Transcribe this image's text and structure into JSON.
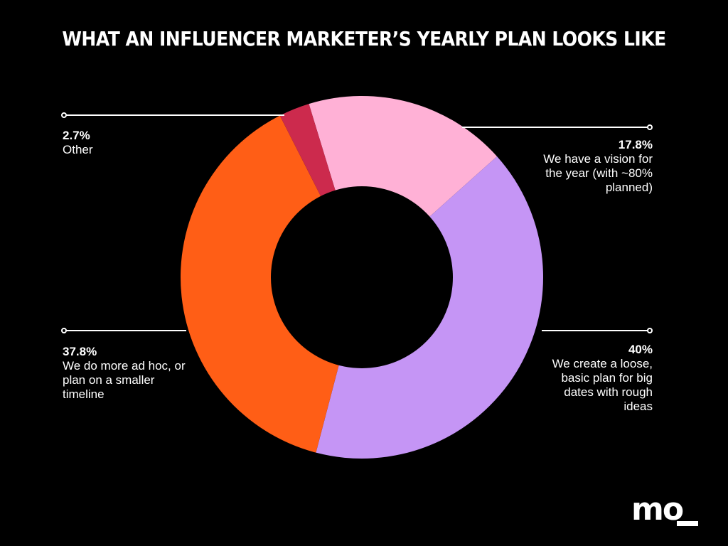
{
  "title": "WHAT AN INFLUENCER MARKETER’S YEARLY PLAN LOOKS LIKE",
  "logo_text": "mo",
  "chart_data": {
    "type": "pie",
    "subtype": "donut",
    "title": "WHAT AN INFLUENCER MARKETER’S YEARLY PLAN LOOKS LIKE",
    "slices": [
      {
        "label": "We have a vision for the year (with ~80% planned)",
        "value": 17.8,
        "pct_label": "17.8%",
        "color": "#FFB1D6"
      },
      {
        "label": "We create a loose, basic plan for big dates with rough ideas",
        "value": 40,
        "pct_label": "40%",
        "color": "#C595F5"
      },
      {
        "label": "We do more ad hoc, or plan on a smaller timeline",
        "value": 37.8,
        "pct_label": "37.8%",
        "color": "#FF5E16"
      },
      {
        "label": "Other",
        "value": 2.7,
        "pct_label": "2.7%",
        "color": "#CC2A4D"
      }
    ],
    "legend": "none"
  },
  "colors": {
    "background": "#000000",
    "text": "#ffffff",
    "leader_line": "#ffffff"
  }
}
